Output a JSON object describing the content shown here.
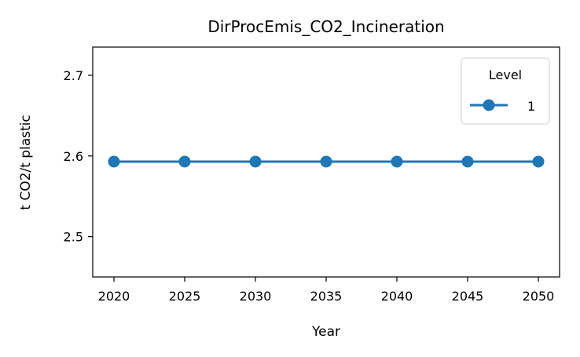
{
  "chart_data": {
    "type": "line",
    "title": "DirProcEmis_CO2_Incineration",
    "xlabel": "Year",
    "ylabel": "t CO2/t plastic",
    "x": [
      2020,
      2025,
      2030,
      2035,
      2040,
      2045,
      2050
    ],
    "xlim": [
      2018.5,
      2051.5
    ],
    "ylim": [
      2.45,
      2.735
    ],
    "xticks": [
      "2020",
      "2025",
      "2030",
      "2035",
      "2040",
      "2045",
      "2050"
    ],
    "yticks": [
      "2.5",
      "2.6",
      "2.7"
    ],
    "ytick_values": [
      2.5,
      2.6,
      2.7
    ],
    "grid": false,
    "legend": {
      "title": "Level",
      "position": "top-right"
    },
    "series": [
      {
        "name": "1",
        "color": "#1f77b4",
        "marker": "circle",
        "values": [
          2.593,
          2.593,
          2.593,
          2.593,
          2.593,
          2.593,
          2.593
        ]
      }
    ]
  }
}
